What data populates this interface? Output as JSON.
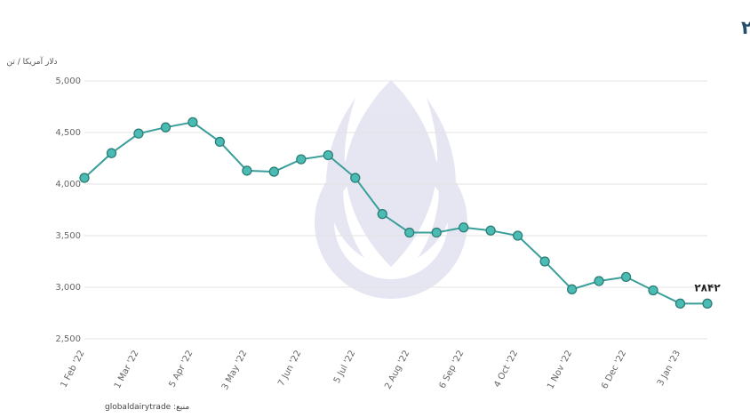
{
  "chart_data": {
    "type": "line",
    "title": "تغییرات میانگین قیمت جهانی پودر شیرخشک اسکیم در ۱۲ ماه اخیر – ۱۷ ژانویه ۲۰۲۳",
    "y_label": "دلار آمریکا / تن",
    "source": "منبع: globaldairytrade",
    "categories": [
      "1 Feb '22",
      null,
      "1 Mar '22",
      null,
      "5 Apr '22",
      null,
      "3 May '22",
      null,
      "7 Jun '22",
      null,
      "5 Jul '22",
      null,
      "2 Aug '22",
      null,
      "6 Sep '22",
      null,
      "4 Oct '22",
      null,
      "1 Nov '22",
      null,
      "6 Dec '22",
      null,
      "3 Jan '23",
      null
    ],
    "series": [
      {
        "name": "SMP",
        "color": "#3a9e9a",
        "values": [
          4060,
          4300,
          4490,
          4550,
          4600,
          4410,
          4130,
          4120,
          4240,
          4280,
          4060,
          3710,
          3530,
          3530,
          3580,
          3550,
          3500,
          3250,
          2980,
          3060,
          3100,
          2970,
          2842,
          2842
        ],
        "value_labels": [
          null,
          null,
          null,
          null,
          null,
          null,
          null,
          null,
          null,
          null,
          null,
          null,
          null,
          null,
          null,
          null,
          null,
          null,
          null,
          null,
          null,
          null,
          null,
          "۲۸۴۲"
        ]
      }
    ],
    "ylim": [
      2500,
      5000
    ],
    "yticks": [
      {
        "value": 2500,
        "label": "2,500"
      },
      {
        "value": 3000,
        "label": "3,000"
      },
      {
        "value": 3500,
        "label": "3,500"
      },
      {
        "value": 4000,
        "label": "4,000"
      },
      {
        "value": 4500,
        "label": "4,500"
      },
      {
        "value": 5000,
        "label": "5,000"
      }
    ],
    "grid": true
  }
}
